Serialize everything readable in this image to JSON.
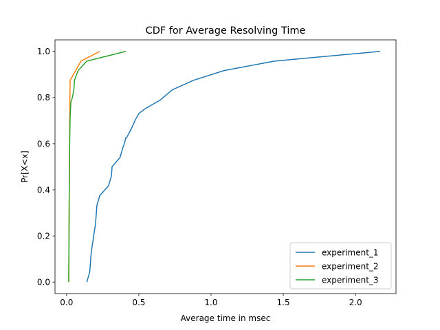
{
  "chart_data": {
    "type": "line",
    "title": "CDF for Average Resolving Time",
    "xlabel": "Average time in msec",
    "ylabel": "Pr[X<x]",
    "xlim": [
      -0.08,
      2.28
    ],
    "ylim": [
      -0.05,
      1.05
    ],
    "xticks": [
      "0.0",
      "0.5",
      "1.0",
      "1.5",
      "2.0"
    ],
    "yticks": [
      "0.0",
      "0.2",
      "0.4",
      "0.6",
      "0.8",
      "1.0"
    ],
    "grid": false,
    "legend_position": "lower-right",
    "series": [
      {
        "name": "experiment_1",
        "color": "#1f77b4",
        "x": [
          0.14,
          0.16,
          0.165,
          0.17,
          0.18,
          0.19,
          0.2,
          0.205,
          0.21,
          0.23,
          0.29,
          0.31,
          0.315,
          0.37,
          0.39,
          0.4,
          0.41,
          0.415,
          0.45,
          0.48,
          0.5,
          0.54,
          0.65,
          0.73,
          0.88,
          1.09,
          1.44,
          2.17
        ],
        "y": [
          0.0,
          0.042,
          0.08,
          0.125,
          0.167,
          0.21,
          0.25,
          0.29,
          0.333,
          0.375,
          0.417,
          0.458,
          0.5,
          0.54,
          0.583,
          0.6,
          0.625,
          0.625,
          0.667,
          0.708,
          0.73,
          0.75,
          0.79,
          0.833,
          0.875,
          0.917,
          0.958,
          1.0
        ]
      },
      {
        "name": "experiment_2",
        "color": "#ff7f0e",
        "x": [
          0.015,
          0.016,
          0.017,
          0.018,
          0.019,
          0.02,
          0.021,
          0.022,
          0.023,
          0.025,
          0.1,
          0.23
        ],
        "y": [
          0.0,
          0.1,
          0.2,
          0.3,
          0.4,
          0.5,
          0.6,
          0.7,
          0.8,
          0.875,
          0.958,
          1.0
        ]
      },
      {
        "name": "experiment_3",
        "color": "#2ca02c",
        "x": [
          0.015,
          0.016,
          0.017,
          0.018,
          0.02,
          0.022,
          0.025,
          0.03,
          0.04,
          0.05,
          0.055,
          0.08,
          0.14,
          0.41
        ],
        "y": [
          0.0,
          0.1,
          0.2,
          0.35,
          0.5,
          0.62,
          0.72,
          0.78,
          0.8,
          0.83,
          0.875,
          0.917,
          0.958,
          1.0
        ]
      }
    ]
  }
}
